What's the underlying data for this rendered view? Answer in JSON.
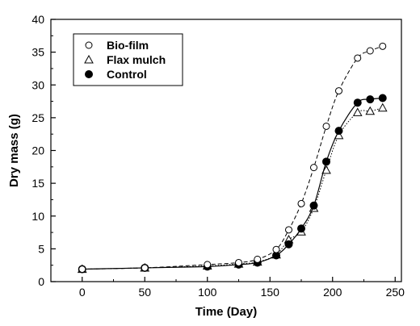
{
  "chart_data": {
    "type": "line",
    "title": "",
    "xlabel": "Time (Day)",
    "ylabel": "Dry mass (g)",
    "xlim": [
      -25,
      255
    ],
    "ylim": [
      0,
      40
    ],
    "xticks": [
      0,
      50,
      100,
      150,
      200,
      250
    ],
    "yticks": [
      0,
      5,
      10,
      15,
      20,
      25,
      30,
      35,
      40
    ],
    "grid": false,
    "legend_position": "top-left",
    "series": [
      {
        "name": "Bio-film",
        "marker": "open-circle",
        "line_style": "dashed",
        "color": "#000000",
        "x": [
          0,
          50,
          100,
          125,
          140,
          155,
          165,
          175,
          185,
          195,
          205,
          220,
          230,
          240
        ],
        "y": [
          1.9,
          2.1,
          2.6,
          2.9,
          3.4,
          4.9,
          7.9,
          11.9,
          17.4,
          23.7,
          29.1,
          34.1,
          35.2,
          35.9
        ]
      },
      {
        "name": "Flax mulch",
        "marker": "open-triangle",
        "line_style": "dotted",
        "color": "#000000",
        "x": [
          0,
          50,
          100,
          125,
          140,
          155,
          165,
          175,
          185,
          195,
          205,
          220,
          230,
          240
        ],
        "y": [
          1.9,
          2.1,
          2.4,
          2.7,
          3.0,
          4.1,
          6.4,
          7.6,
          11.2,
          17.0,
          22.3,
          25.8,
          26.0,
          26.5
        ]
      },
      {
        "name": "Control",
        "marker": "filled-circle",
        "line_style": "solid",
        "color": "#000000",
        "x": [
          0,
          50,
          100,
          125,
          140,
          155,
          165,
          175,
          185,
          195,
          205,
          220,
          230,
          240
        ],
        "y": [
          1.9,
          2.1,
          2.3,
          2.6,
          2.9,
          4.0,
          5.7,
          8.1,
          11.6,
          18.3,
          23.0,
          27.3,
          27.8,
          28.0
        ]
      }
    ]
  }
}
